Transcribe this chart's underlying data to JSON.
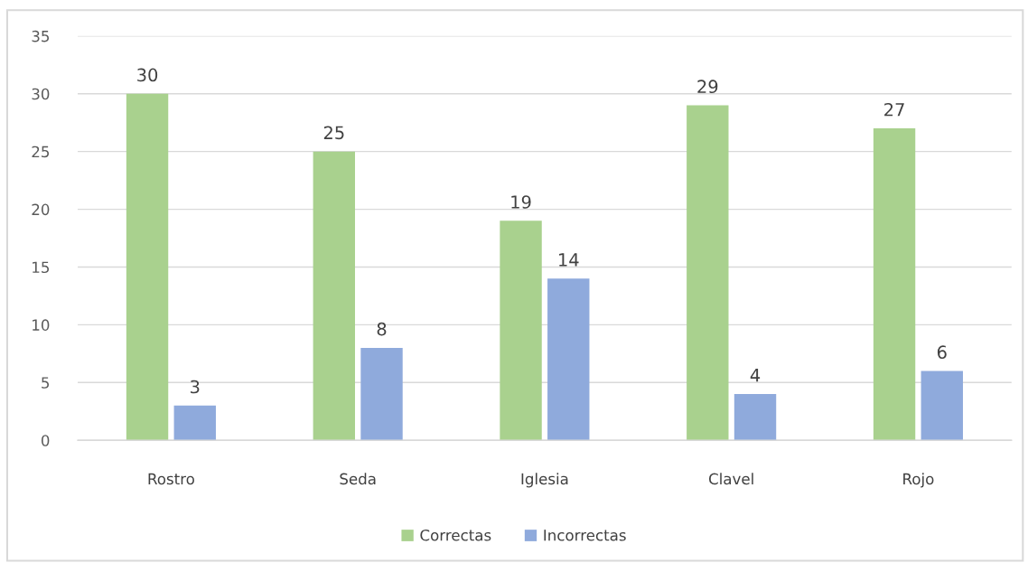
{
  "chart_data": {
    "type": "bar",
    "categories": [
      "Rostro",
      "Seda",
      "Iglesia",
      "Clavel",
      "Rojo"
    ],
    "series": [
      {
        "name": "Correctas",
        "color": "#a9d18e",
        "values": [
          30,
          25,
          19,
          29,
          27
        ]
      },
      {
        "name": "Incorrectas",
        "color": "#8faadc",
        "values": [
          3,
          8,
          14,
          4,
          6
        ]
      }
    ],
    "ylim": [
      0,
      35
    ],
    "yticks": [
      0,
      5,
      10,
      15,
      20,
      25,
      30,
      35
    ],
    "grid": "y",
    "legend": "bottom",
    "data_labels": true
  }
}
